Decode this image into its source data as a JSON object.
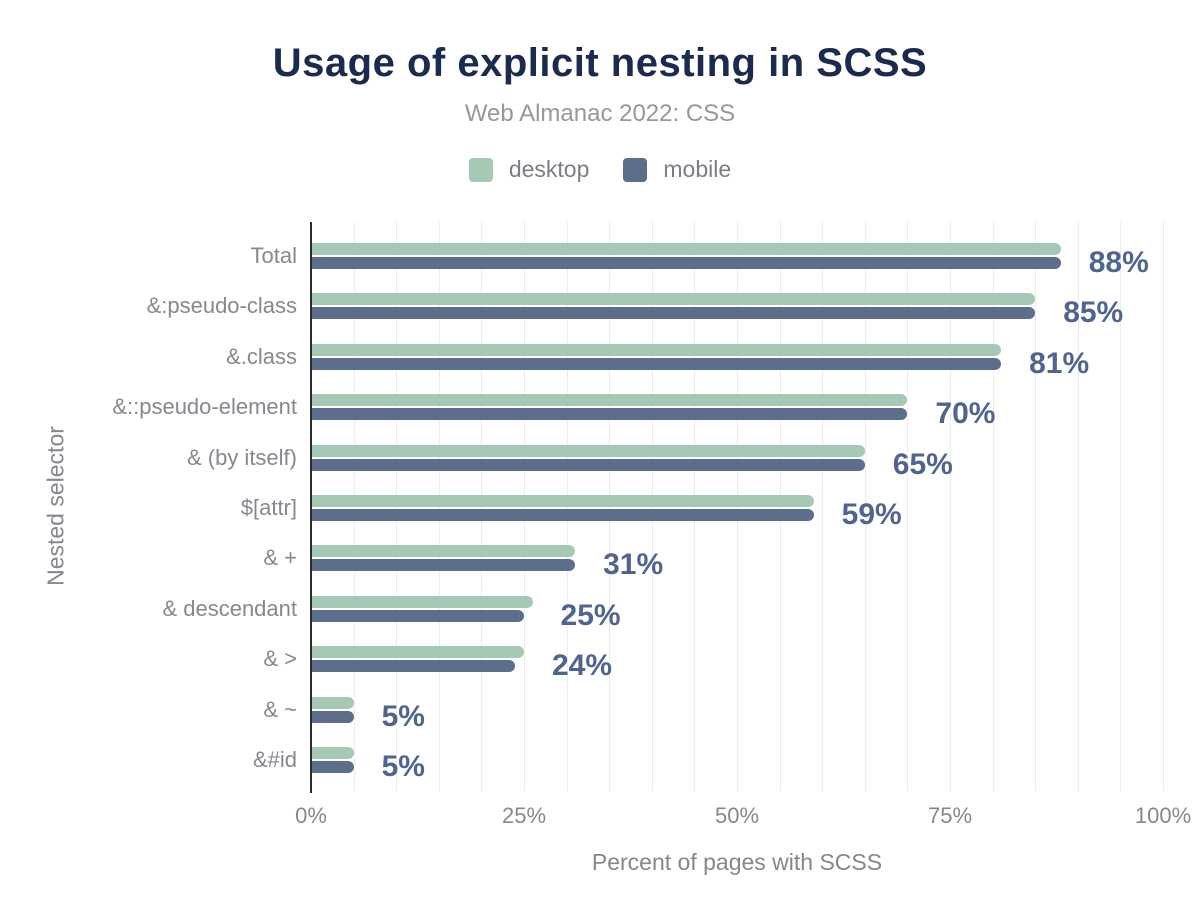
{
  "title": "Usage of explicit nesting in SCSS",
  "subtitle": "Web Almanac 2022: CSS",
  "legend": {
    "items": [
      {
        "label": "desktop",
        "color": "#a5c9b5"
      },
      {
        "label": "mobile",
        "color": "#5d6e8c"
      }
    ]
  },
  "colors": {
    "title": "#1b2b4e",
    "subtitle": "#94989e",
    "axis_text": "#85888e",
    "value_label": "#4f648e",
    "axis_line": "#2e2e2e",
    "gridline": "#ececec",
    "desktop": "#a5c9b5",
    "mobile": "#5d6e8c"
  },
  "chart_data": {
    "type": "bar",
    "orientation": "horizontal",
    "title": "Usage of explicit nesting in SCSS",
    "subtitle": "Web Almanac 2022: CSS",
    "xlabel": "Percent of pages with SCSS",
    "ylabel": "Nested selector",
    "xlim": [
      0,
      100
    ],
    "grid": true,
    "gridline_step": 5,
    "legend_position": "top",
    "x_ticks": [
      {
        "value": 0,
        "label": "0%"
      },
      {
        "value": 25,
        "label": "25%"
      },
      {
        "value": 50,
        "label": "50%"
      },
      {
        "value": 75,
        "label": "75%"
      },
      {
        "value": 100,
        "label": "100%"
      }
    ],
    "categories": [
      "Total",
      "&:pseudo-class",
      "&.class",
      "&::pseudo-element",
      "& (by itself)",
      "$[attr]",
      "& +",
      "& descendant",
      "& >",
      "& ~",
      "&#id"
    ],
    "series": [
      {
        "name": "desktop",
        "color": "#a5c9b5",
        "values": [
          88,
          85,
          81,
          70,
          65,
          59,
          31,
          26,
          25,
          5,
          5
        ]
      },
      {
        "name": "mobile",
        "color": "#5d6e8c",
        "values": [
          88,
          85,
          81,
          70,
          65,
          59,
          31,
          25,
          24,
          5,
          5
        ]
      }
    ],
    "data_labels": [
      "88%",
      "85%",
      "81%",
      "70%",
      "65%",
      "59%",
      "31%",
      "25%",
      "24%",
      "5%",
      "5%"
    ]
  }
}
